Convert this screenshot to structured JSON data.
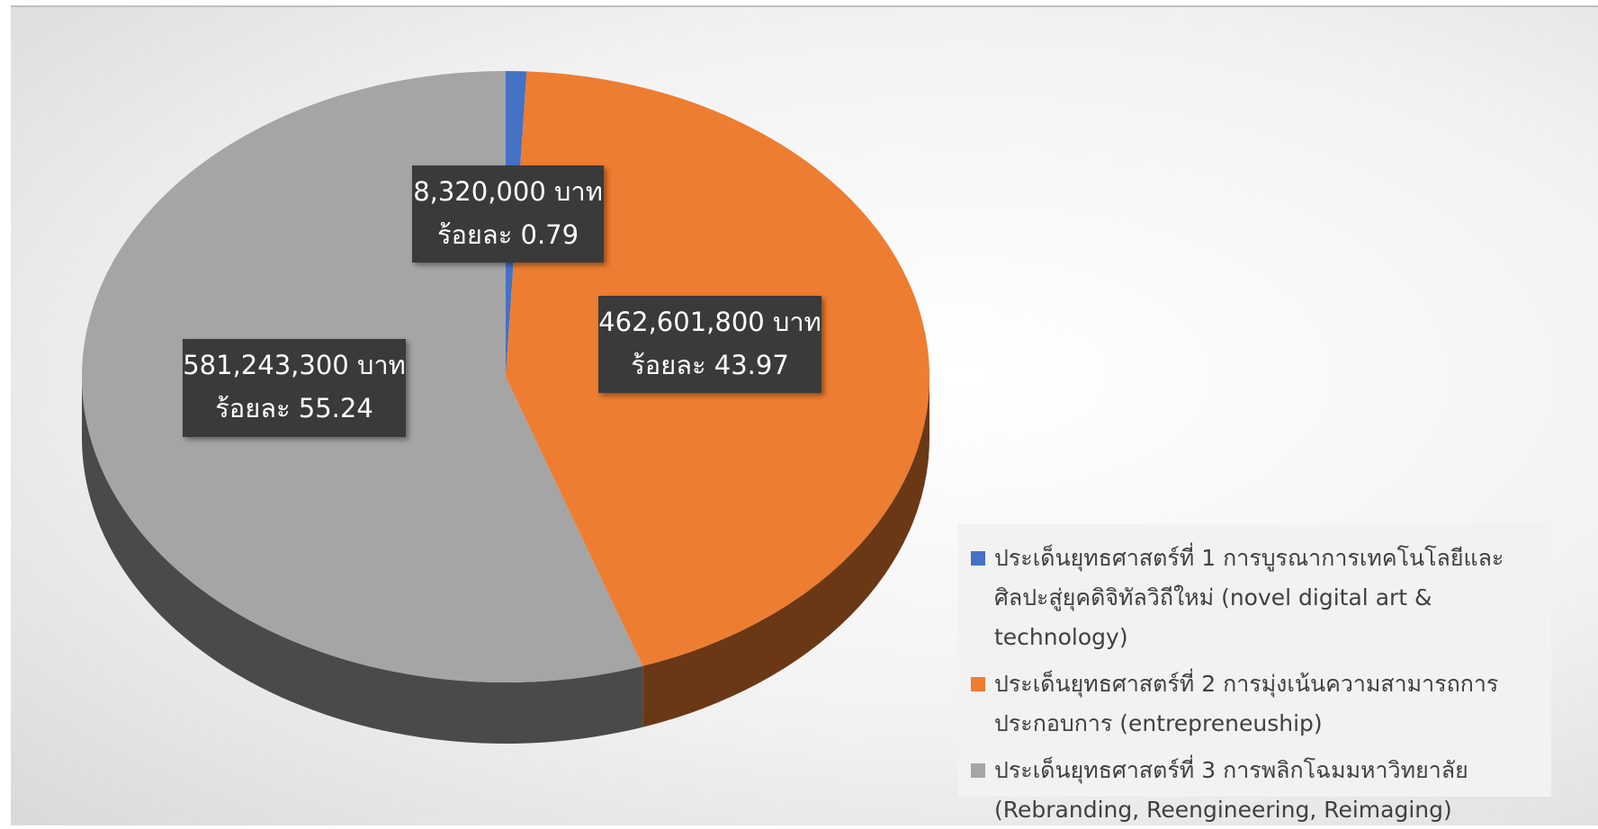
{
  "chart_data": {
    "type": "pie",
    "series": [
      {
        "name": "ประเด็นยุทธศาสตร์ที่ 1 การบูรณาการเทคโนโลยีและศิลปะสู่ยุคดิจิทัลวิถีใหม่ (novel digital art & technology)",
        "color": "#4472c4"
      },
      {
        "name": "ประเด็นยุทธศาสตร์ที่ 2 การมุ่งเน้นความสามารถการประกอบการ (entrepreneuship)",
        "color": "#ed7d31"
      },
      {
        "name": "ประเด็นยุทธศาสตร์ที่ 3 การพลิกโฉมมหาวิทยาลัย (Rebranding, Reengineering, Reimaging)",
        "color": "#a5a5a5"
      }
    ],
    "values": [
      8320000,
      462601800,
      581243300
    ],
    "value_labels": [
      "8,320,000 บาท",
      "462,601,800 บาท",
      "581,243,300 บาท"
    ],
    "percent_labels": [
      "ร้อยละ 0.79",
      "ร้อยละ 43.97",
      "ร้อยละ 55.24"
    ],
    "legend": "bottom-right"
  }
}
